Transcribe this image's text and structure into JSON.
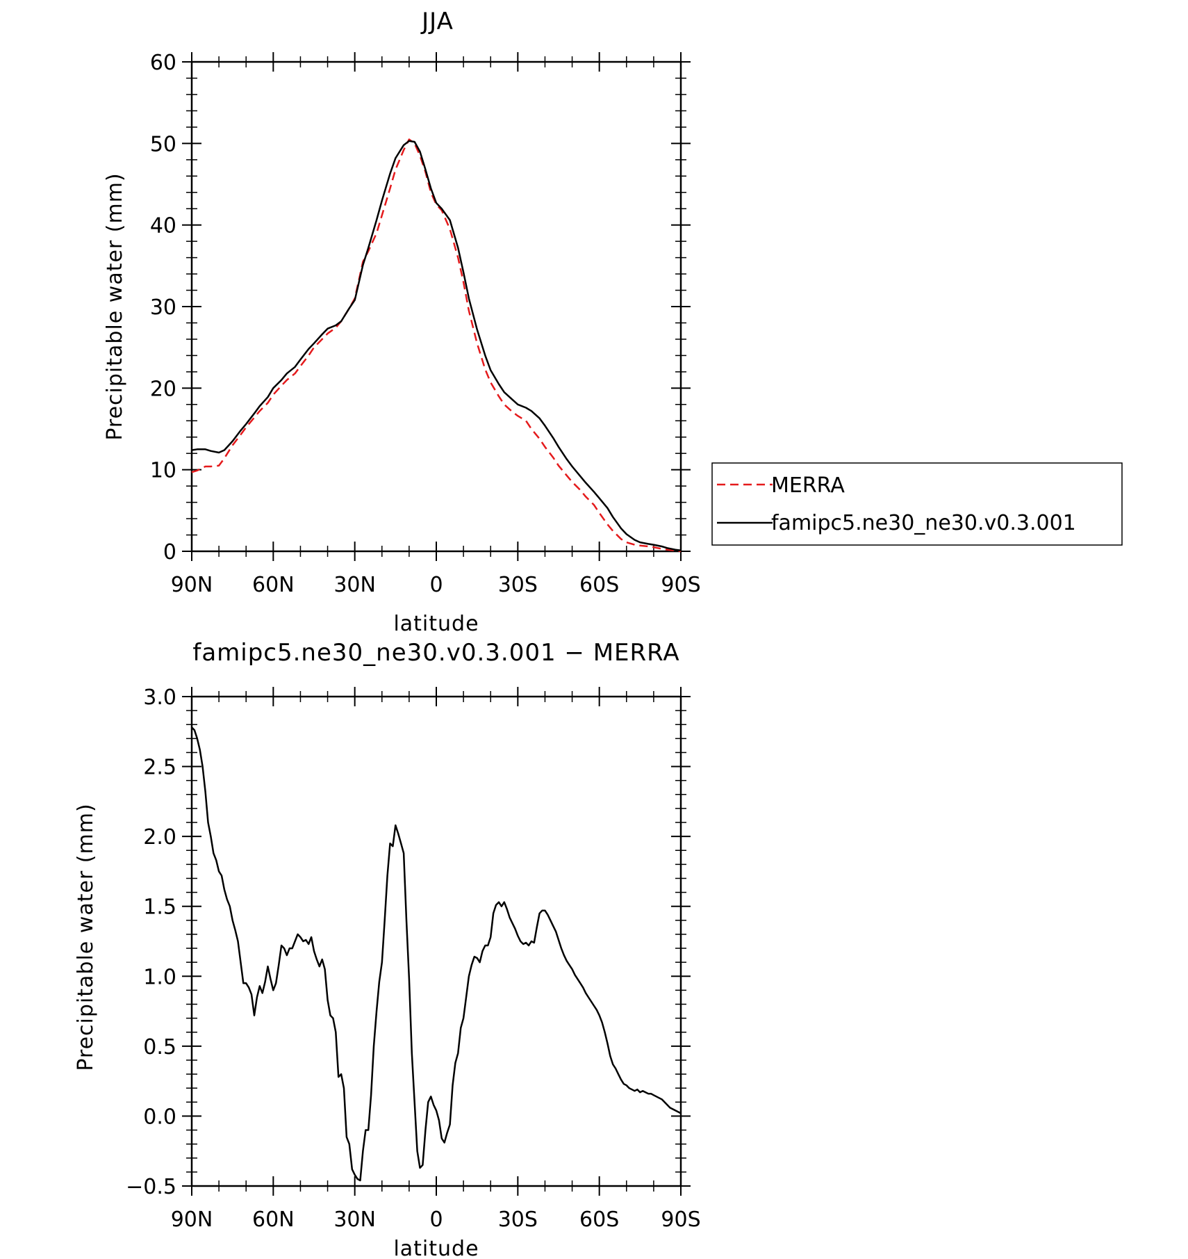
{
  "chart_data": [
    {
      "type": "line",
      "title": "JJA",
      "xlabel": "latitude",
      "ylabel": "Precipitable water (mm)",
      "xlim": [
        90,
        -90
      ],
      "ylim": [
        0,
        60
      ],
      "xticks": [
        90,
        60,
        30,
        0,
        -30,
        -60,
        -90
      ],
      "xtick_labels": [
        "90N",
        "60N",
        "30N",
        "0",
        "30S",
        "60S",
        "90S"
      ],
      "yticks": [
        0,
        10,
        20,
        30,
        40,
        50,
        60
      ],
      "ytick_labels": [
        "0",
        "10",
        "20",
        "30",
        "40",
        "50",
        "60"
      ],
      "legend_position": "right",
      "series": [
        {
          "name": "MERRA",
          "color": "#e41a1c",
          "dash": "dashed",
          "x": [
            90,
            88,
            85,
            83,
            80,
            78,
            75,
            72,
            70,
            67,
            65,
            62,
            60,
            57,
            55,
            52,
            50,
            47,
            45,
            42,
            40,
            37,
            35,
            32,
            30,
            27,
            25,
            22,
            20,
            17,
            15,
            12,
            10,
            8,
            6,
            4,
            2,
            0,
            -2,
            -5,
            -8,
            -10,
            -12,
            -15,
            -18,
            -20,
            -23,
            -25,
            -28,
            -30,
            -33,
            -35,
            -38,
            -40,
            -43,
            -45,
            -48,
            -50,
            -53,
            -55,
            -58,
            -60,
            -63,
            -65,
            -68,
            -70,
            -73,
            -75,
            -78,
            -80,
            -83,
            -85,
            -88,
            -90
          ],
          "y": [
            9.7,
            9.9,
            10.4,
            10.4,
            10.5,
            11.4,
            13.0,
            14.3,
            15.2,
            16.4,
            17.2,
            18.2,
            19.2,
            20.3,
            21.0,
            21.8,
            22.7,
            24.0,
            25.0,
            26.0,
            26.7,
            27.4,
            28.2,
            29.8,
            31.0,
            35.5,
            36.8,
            39.0,
            41.2,
            44.5,
            46.8,
            49.2,
            50.5,
            50.0,
            48.5,
            46.5,
            44.0,
            42.5,
            41.8,
            39.5,
            36.0,
            33.0,
            29.5,
            25.5,
            22.3,
            20.7,
            19.0,
            18.0,
            17.1,
            16.6,
            16.0,
            15.0,
            13.8,
            12.8,
            11.5,
            10.5,
            9.3,
            8.5,
            7.5,
            6.7,
            5.7,
            4.7,
            3.3,
            2.5,
            1.5,
            1.1,
            0.8,
            0.7,
            0.6,
            0.5,
            0.3,
            0.2,
            0.1,
            0.0
          ]
        },
        {
          "name": "famipc5.ne30_ne30.v0.3.001",
          "color": "#000000",
          "dash": "solid",
          "x": [
            90,
            88,
            85,
            83,
            80,
            78,
            75,
            72,
            70,
            67,
            65,
            62,
            60,
            57,
            55,
            52,
            50,
            47,
            45,
            42,
            40,
            37,
            35,
            32,
            30,
            27,
            25,
            22,
            20,
            17,
            15,
            12,
            10,
            8,
            6,
            4,
            2,
            0,
            -2,
            -5,
            -8,
            -10,
            -12,
            -15,
            -18,
            -20,
            -23,
            -25,
            -28,
            -30,
            -33,
            -35,
            -38,
            -40,
            -43,
            -45,
            -48,
            -50,
            -53,
            -55,
            -58,
            -60,
            -63,
            -65,
            -68,
            -70,
            -73,
            -75,
            -78,
            -80,
            -83,
            -85,
            -88,
            -90
          ],
          "y": [
            12.4,
            12.5,
            12.5,
            12.3,
            12.1,
            12.4,
            13.5,
            14.8,
            15.6,
            16.9,
            17.8,
            18.9,
            20.0,
            21.0,
            21.8,
            22.6,
            23.5,
            24.8,
            25.5,
            26.6,
            27.3,
            27.7,
            28.2,
            29.8,
            30.8,
            35.1,
            37.2,
            40.6,
            43.0,
            46.3,
            48.2,
            49.8,
            50.3,
            50.2,
            49.0,
            46.8,
            44.5,
            42.7,
            42.0,
            40.6,
            37.2,
            34.2,
            31.0,
            27.2,
            24.0,
            22.2,
            20.5,
            19.5,
            18.6,
            18.0,
            17.6,
            17.2,
            16.3,
            15.4,
            13.9,
            12.8,
            11.3,
            10.4,
            9.2,
            8.4,
            7.3,
            6.5,
            5.3,
            4.2,
            2.8,
            2.1,
            1.4,
            1.1,
            0.9,
            0.8,
            0.6,
            0.4,
            0.2,
            0.1
          ]
        }
      ]
    },
    {
      "type": "line",
      "title": "famipc5.ne30_ne30.v0.3.001 − MERRA",
      "xlabel": "latitude",
      "ylabel": "Precipitable water (mm)",
      "xlim": [
        90,
        -90
      ],
      "ylim": [
        -0.5,
        3.0
      ],
      "xticks": [
        90,
        60,
        30,
        0,
        -30,
        -60,
        -90
      ],
      "xtick_labels": [
        "90N",
        "60N",
        "30N",
        "0",
        "30S",
        "60S",
        "90S"
      ],
      "yticks": [
        -0.5,
        0.0,
        0.5,
        1.0,
        1.5,
        2.0,
        2.5,
        3.0
      ],
      "ytick_labels": [
        "−0.5",
        "0.0",
        "0.5",
        "1.0",
        "1.5",
        "2.0",
        "2.5",
        "3.0"
      ],
      "series": [
        {
          "color": "#000000",
          "dash": "solid",
          "x": [
            90,
            89,
            88,
            87,
            86,
            85,
            84,
            83,
            82,
            81,
            80,
            79,
            78,
            77,
            76,
            75,
            74,
            73,
            72,
            71,
            70,
            69,
            68,
            67,
            66,
            65,
            64,
            63,
            62,
            61,
            60,
            59,
            58,
            57,
            56,
            55,
            54,
            53,
            52,
            51,
            50,
            49,
            48,
            47,
            46,
            45,
            44,
            43,
            42,
            41,
            40,
            39,
            38,
            37,
            36,
            35,
            34,
            33,
            32,
            31,
            30,
            29,
            28,
            27,
            26,
            25,
            24,
            23,
            22,
            21,
            20,
            19,
            18,
            17,
            16,
            15,
            14,
            13,
            12,
            11,
            10,
            9,
            8,
            7,
            6,
            5,
            4,
            3,
            2,
            1,
            0,
            -1,
            -2,
            -3,
            -4,
            -5,
            -6,
            -7,
            -8,
            -9,
            -10,
            -11,
            -12,
            -13,
            -14,
            -15,
            -16,
            -17,
            -18,
            -19,
            -20,
            -21,
            -22,
            -23,
            -24,
            -25,
            -26,
            -27,
            -28,
            -29,
            -30,
            -31,
            -32,
            -33,
            -34,
            -35,
            -36,
            -37,
            -38,
            -39,
            -40,
            -41,
            -42,
            -43,
            -44,
            -45,
            -46,
            -47,
            -48,
            -49,
            -50,
            -51,
            -52,
            -53,
            -54,
            -55,
            -56,
            -57,
            -58,
            -59,
            -60,
            -61,
            -62,
            -63,
            -64,
            -65,
            -66,
            -67,
            -68,
            -69,
            -70,
            -71,
            -72,
            -73,
            -74,
            -75,
            -76,
            -77,
            -78,
            -79,
            -80,
            -81,
            -82,
            -83,
            -84,
            -85,
            -86,
            -87,
            -88,
            -89,
            -90
          ],
          "y": [
            2.78,
            2.76,
            2.7,
            2.62,
            2.5,
            2.32,
            2.1,
            2.0,
            1.88,
            1.83,
            1.75,
            1.72,
            1.62,
            1.55,
            1.5,
            1.4,
            1.33,
            1.25,
            1.1,
            0.95,
            0.95,
            0.92,
            0.87,
            0.72,
            0.85,
            0.93,
            0.88,
            0.96,
            1.07,
            0.98,
            0.9,
            0.95,
            1.08,
            1.22,
            1.2,
            1.15,
            1.2,
            1.2,
            1.25,
            1.3,
            1.28,
            1.25,
            1.26,
            1.23,
            1.28,
            1.18,
            1.12,
            1.07,
            1.12,
            1.05,
            0.83,
            0.72,
            0.7,
            0.6,
            0.28,
            0.3,
            0.2,
            -0.15,
            -0.2,
            -0.38,
            -0.42,
            -0.45,
            -0.46,
            -0.25,
            -0.1,
            -0.1,
            0.15,
            0.5,
            0.75,
            0.96,
            1.1,
            1.4,
            1.72,
            1.95,
            1.93,
            2.08,
            2.02,
            1.95,
            1.88,
            1.4,
            0.98,
            0.45,
            0.1,
            -0.25,
            -0.37,
            -0.35,
            -0.1,
            0.1,
            0.14,
            0.08,
            0.04,
            -0.03,
            -0.16,
            -0.19,
            -0.12,
            -0.06,
            0.22,
            0.38,
            0.45,
            0.63,
            0.7,
            0.85,
            1.0,
            1.08,
            1.14,
            1.13,
            1.1,
            1.18,
            1.22,
            1.22,
            1.28,
            1.45,
            1.51,
            1.53,
            1.5,
            1.53,
            1.48,
            1.42,
            1.38,
            1.34,
            1.29,
            1.25,
            1.23,
            1.24,
            1.22,
            1.25,
            1.24,
            1.35,
            1.45,
            1.47,
            1.47,
            1.44,
            1.4,
            1.36,
            1.32,
            1.26,
            1.2,
            1.15,
            1.11,
            1.08,
            1.05,
            1.01,
            0.98,
            0.95,
            0.92,
            0.88,
            0.85,
            0.82,
            0.79,
            0.76,
            0.72,
            0.67,
            0.6,
            0.52,
            0.43,
            0.37,
            0.34,
            0.3,
            0.26,
            0.23,
            0.22,
            0.2,
            0.19,
            0.18,
            0.19,
            0.17,
            0.18,
            0.17,
            0.16,
            0.16,
            0.15,
            0.14,
            0.13,
            0.12,
            0.1,
            0.08,
            0.06,
            0.05,
            0.04,
            0.03,
            0.02
          ]
        }
      ]
    }
  ]
}
